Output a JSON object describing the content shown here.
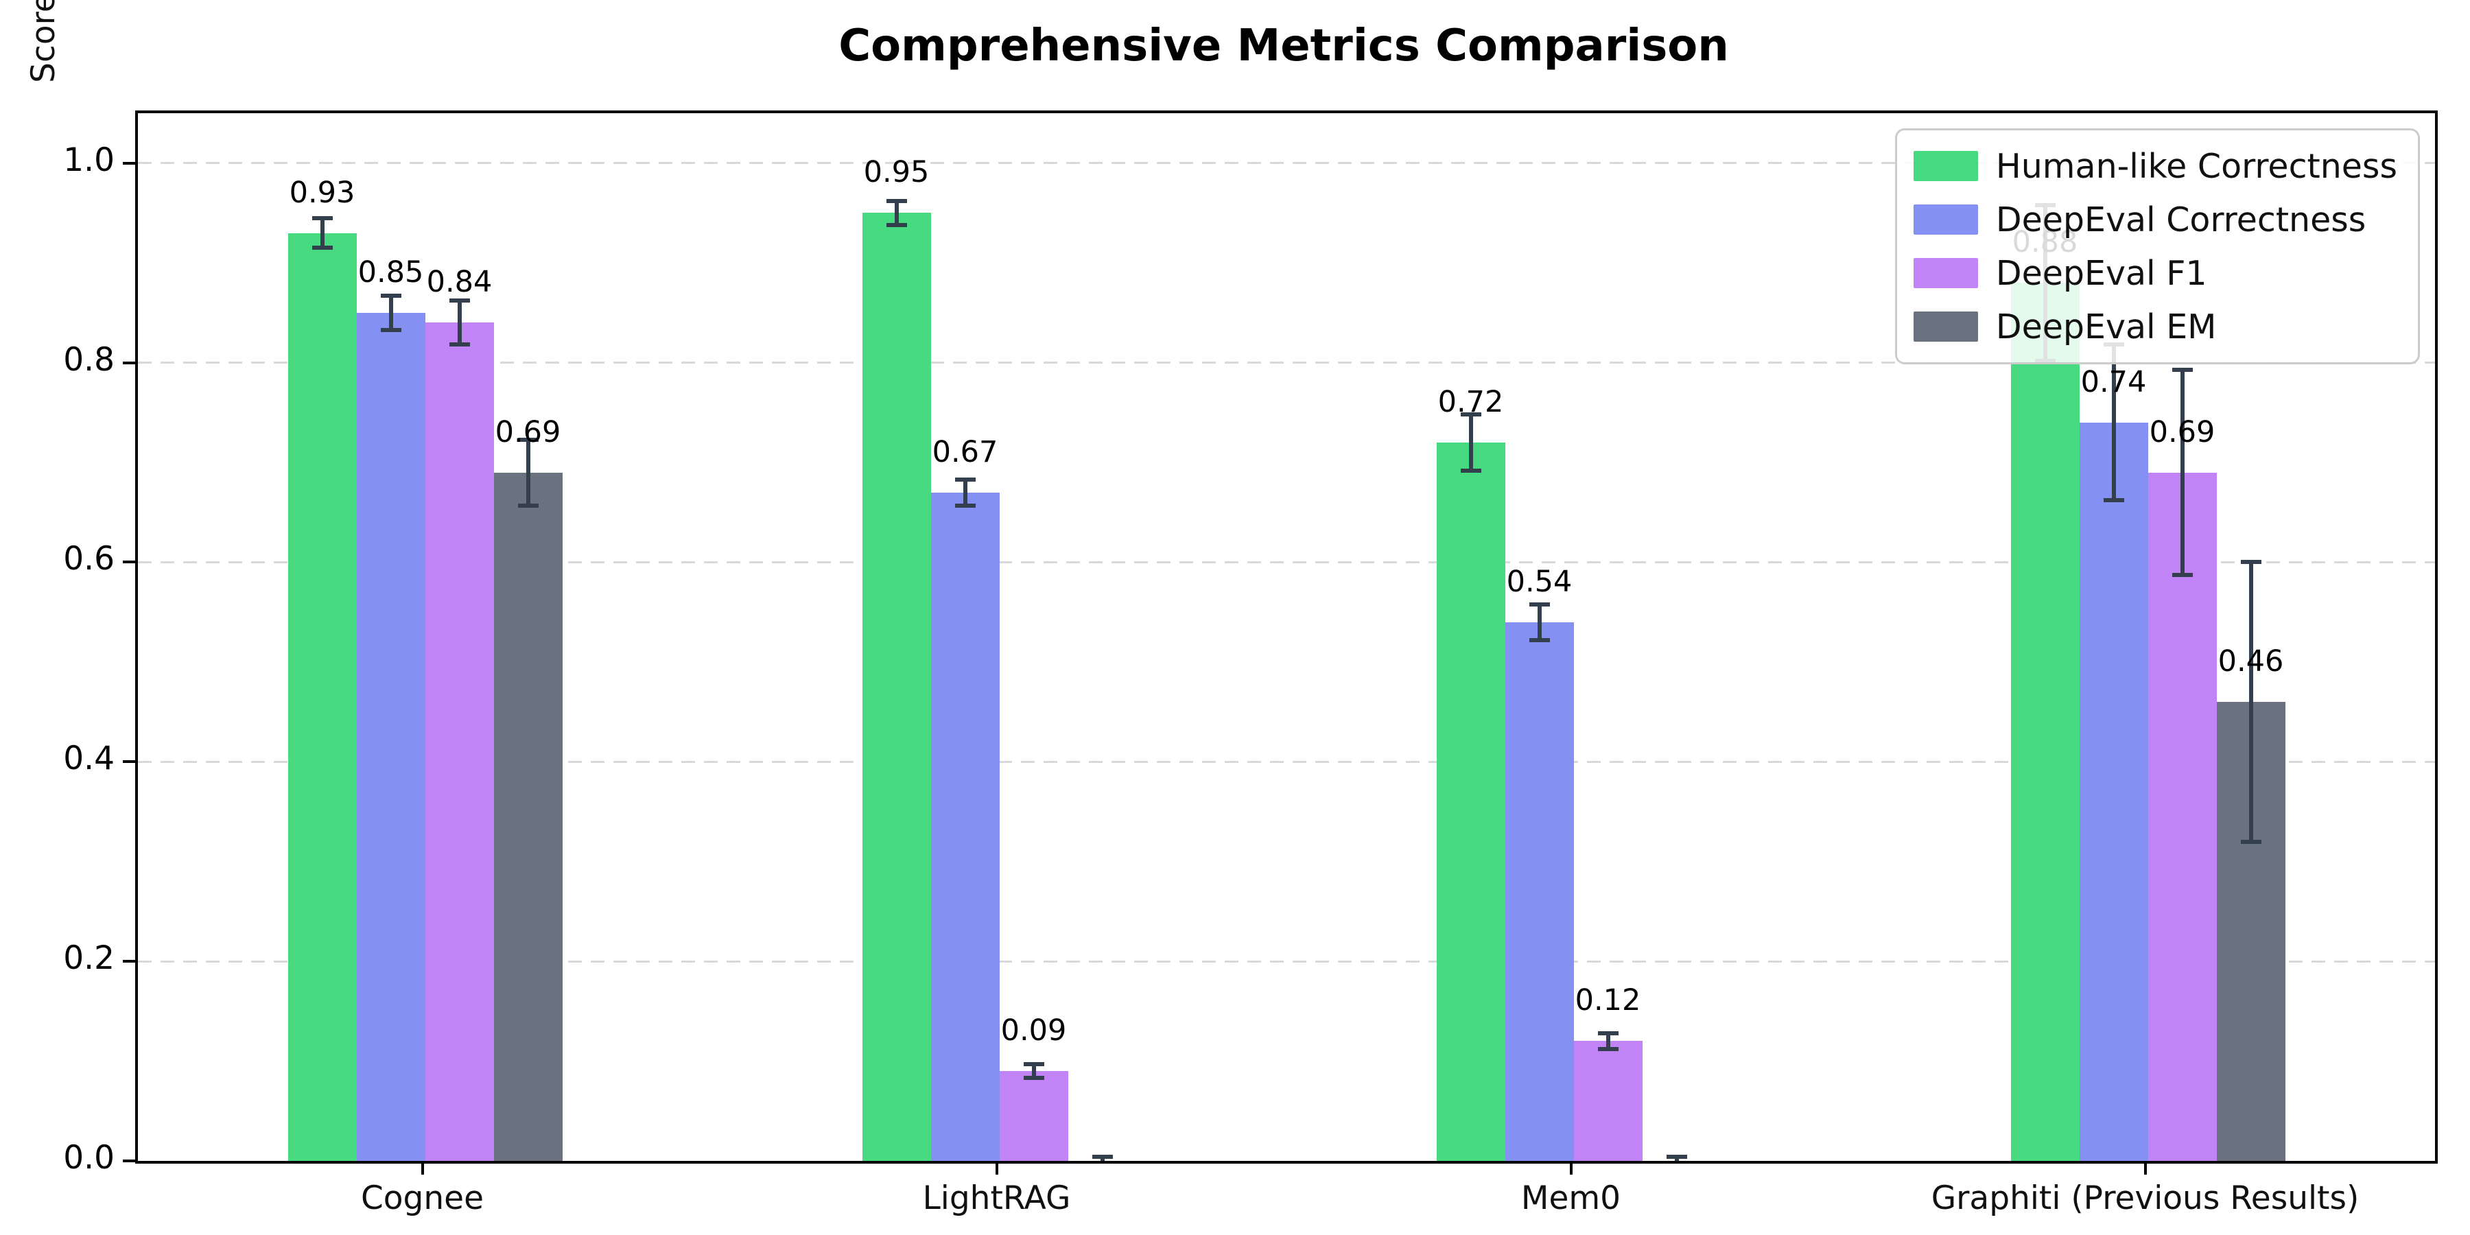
{
  "chart_data": {
    "type": "bar",
    "title": "Comprehensive Metrics Comparison",
    "ylabel": "Score",
    "xlabel": "",
    "categories": [
      "Cognee",
      "LightRAG",
      "Mem0",
      "Graphiti (Previous Results)"
    ],
    "series": [
      {
        "name": "Human-like Correctness",
        "color": "#47da81",
        "values": [
          0.93,
          0.95,
          0.72,
          0.88
        ],
        "errors": [
          0.015,
          0.012,
          0.028,
          0.078
        ],
        "labels": [
          "0.93",
          "0.95",
          "0.72",
          "0.88"
        ]
      },
      {
        "name": "DeepEval Correctness",
        "color": "#8490f2",
        "values": [
          0.85,
          0.67,
          0.54,
          0.74
        ],
        "errors": [
          0.017,
          0.013,
          0.018,
          0.078
        ],
        "labels": [
          "0.85",
          "0.67",
          "0.54",
          "0.74"
        ]
      },
      {
        "name": "DeepEval F1",
        "color": "#c084f7",
        "values": [
          0.84,
          0.09,
          0.12,
          0.69
        ],
        "errors": [
          0.022,
          0.007,
          0.008,
          0.103
        ],
        "labels": [
          "0.84",
          "0.09",
          "0.12",
          "0.69"
        ]
      },
      {
        "name": "DeepEval EM",
        "color": "#6a7280",
        "values": [
          0.69,
          0.0,
          0.0,
          0.46
        ],
        "errors": [
          0.033,
          0.004,
          0.004,
          0.14
        ],
        "labels": [
          "0.69",
          "",
          "",
          "0.46"
        ]
      }
    ],
    "ylim": [
      0,
      1.05
    ],
    "ytick_values": [
      0.0,
      0.2,
      0.4,
      0.6,
      0.8,
      1.0
    ],
    "ytick_labels": [
      "0.0",
      "0.2",
      "0.4",
      "0.6",
      "0.8",
      "1.0"
    ],
    "grid": {
      "axis": "y",
      "style": "dashed",
      "color": "#d9d9d9"
    },
    "legend": {
      "position": "upper right",
      "entries": [
        "Human-like Correctness",
        "DeepEval Correctness",
        "DeepEval F1",
        "DeepEval EM"
      ]
    },
    "error_bar_color": "#333f4d",
    "axis_color": "#000000"
  }
}
